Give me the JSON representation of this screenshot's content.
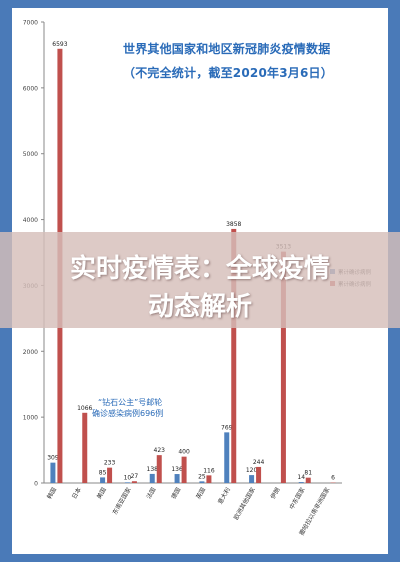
{
  "chart_data": {
    "type": "bar",
    "title": "世界其他国家和地区新冠肺炎疫情数据",
    "subtitle": "（不完全统计，截至2020年3月6日）",
    "categories": [
      "韩国",
      "日本",
      "美国",
      "东南亚国家",
      "法国",
      "德国",
      "英国",
      "意大利",
      "欧洲其他国家",
      "伊朗",
      "中东国家",
      "撒哈拉以南非洲国家"
    ],
    "series": [
      {
        "name": "累计确诊病例",
        "color": "#4f81bd",
        "values": [
          309,
          null,
          85,
          10,
          138,
          136,
          25,
          769,
          120,
          null,
          14,
          null
        ]
      },
      {
        "name": "累计确诊病例",
        "color": "#c0504d",
        "values": [
          6593,
          1066,
          233,
          27,
          423,
          400,
          116,
          3858,
          244,
          3513,
          81,
          6
        ]
      }
    ],
    "ylim": [
      0,
      7000
    ],
    "yticks": [
      0,
      1000,
      2000,
      3000,
      4000,
      5000,
      6000,
      7000
    ],
    "legend_position": "right",
    "grid": false,
    "annotation": [
      "“钻石公主”号邮轮",
      "确诊感染病例696例"
    ]
  },
  "banner": {
    "line1": "实时疫情表：全球疫情",
    "line2": "动态解析"
  }
}
